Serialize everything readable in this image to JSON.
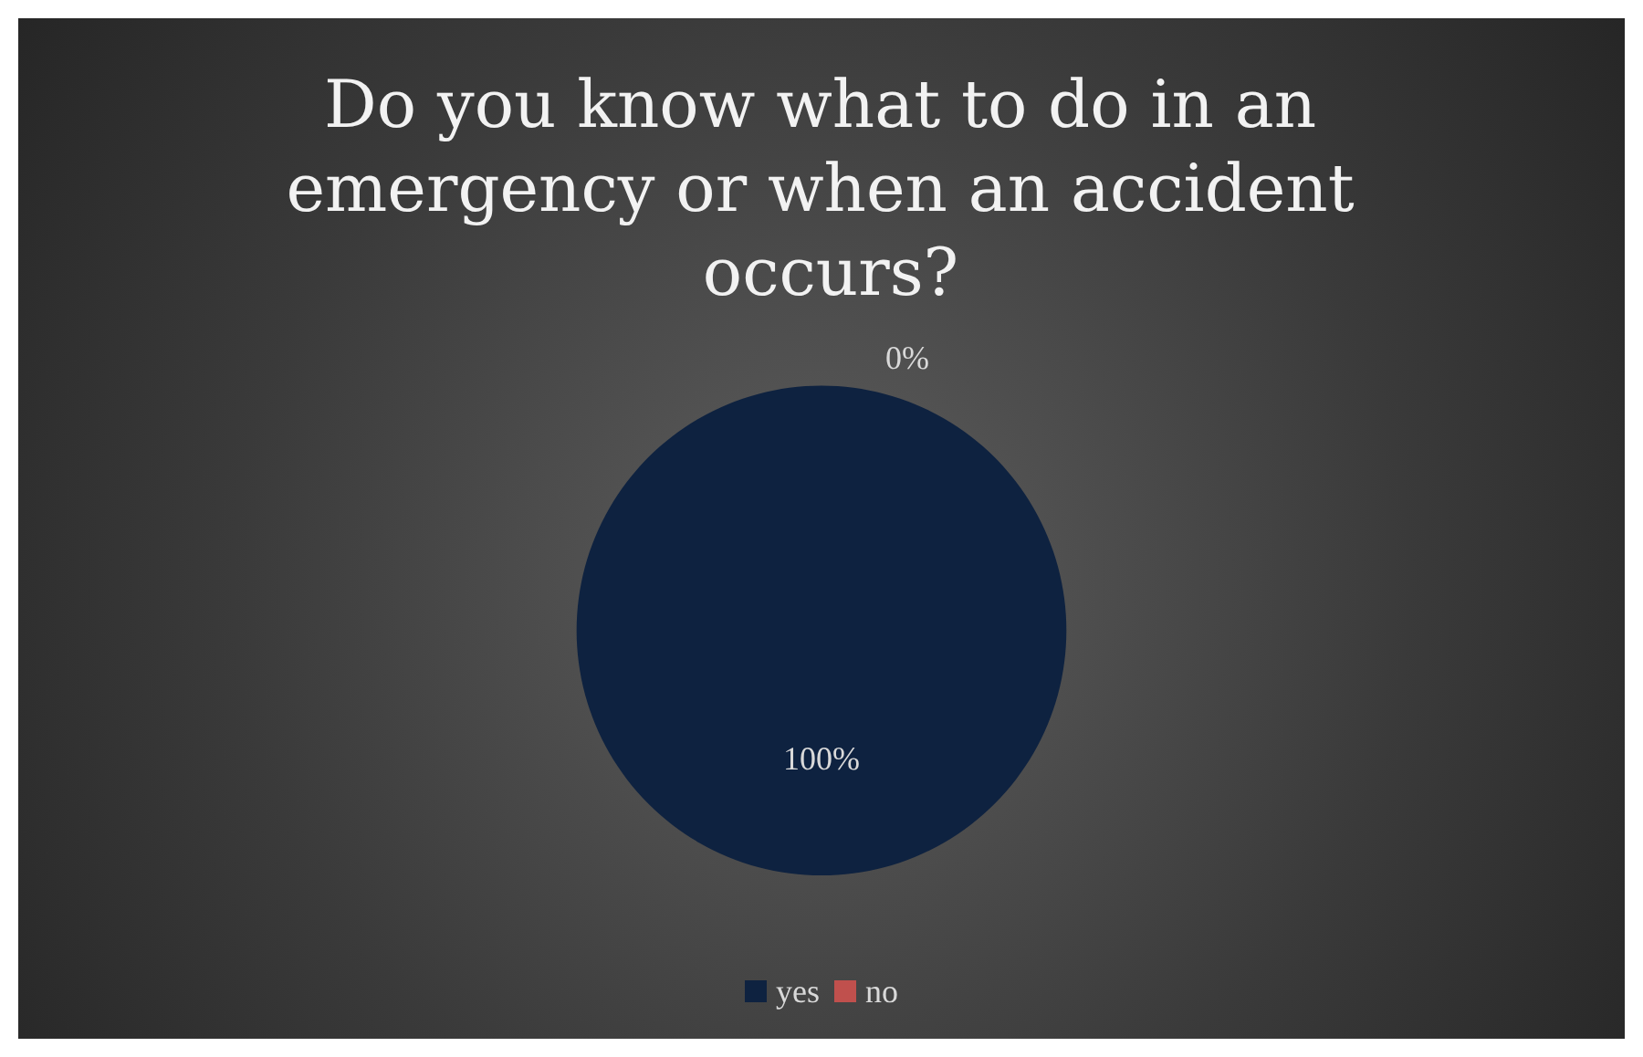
{
  "chart_data": {
    "type": "pie",
    "title": "Do you know what to do in an emergency or when an accident occurs?",
    "categories": [
      "yes",
      "no"
    ],
    "values": [
      100,
      0
    ],
    "colors": [
      "#0e2240",
      "#c0504d"
    ],
    "value_labels": [
      "100%",
      "0%"
    ],
    "legend": "bottom"
  }
}
